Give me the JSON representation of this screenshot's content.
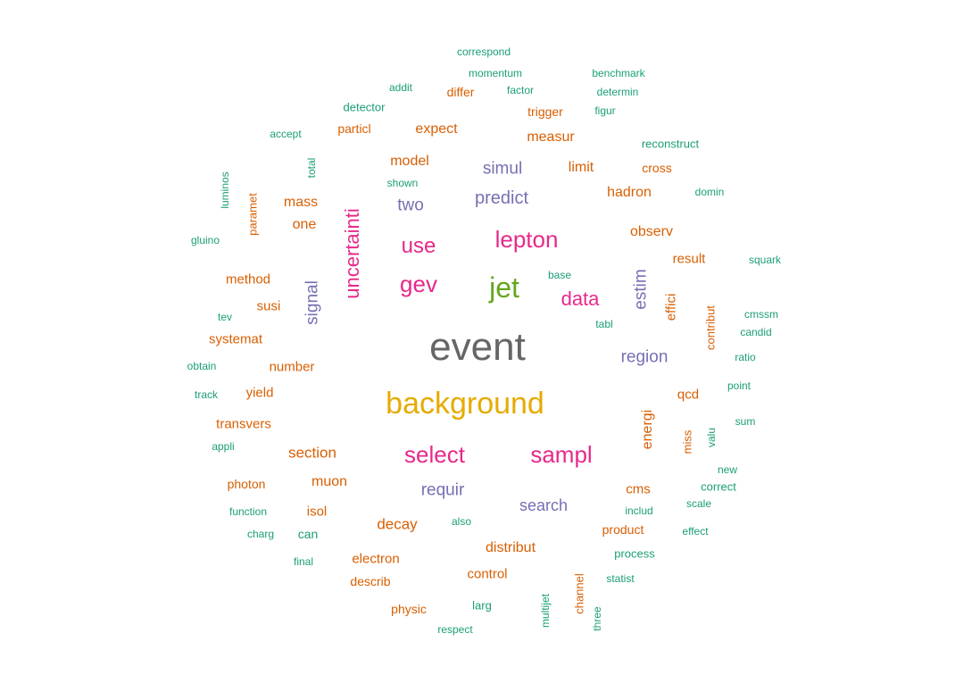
{
  "palette": {
    "teal": "#1b9e77",
    "orange": "#d95f02",
    "purple": "#7570b3",
    "pink": "#e7298a",
    "green": "#66a61e",
    "gold": "#e6ab02",
    "gray": "#666666"
  },
  "words": [
    {
      "text": "event",
      "color": "gray",
      "weight": 10,
      "rotated": false
    },
    {
      "text": "background",
      "color": "gold",
      "weight": 9,
      "rotated": false
    },
    {
      "text": "jet",
      "color": "green",
      "weight": 8,
      "rotated": false
    },
    {
      "text": "lepton",
      "color": "pink",
      "weight": 7,
      "rotated": false
    },
    {
      "text": "select",
      "color": "pink",
      "weight": 7,
      "rotated": false
    },
    {
      "text": "sampl",
      "color": "pink",
      "weight": 7,
      "rotated": false
    },
    {
      "text": "gev",
      "color": "pink",
      "weight": 7,
      "rotated": false
    },
    {
      "text": "use",
      "color": "pink",
      "weight": 6,
      "rotated": false
    },
    {
      "text": "data",
      "color": "pink",
      "weight": 6,
      "rotated": false
    },
    {
      "text": "uncertainti",
      "color": "pink",
      "weight": 6,
      "rotated": true
    },
    {
      "text": "predict",
      "color": "purple",
      "weight": 5,
      "rotated": false
    },
    {
      "text": "region",
      "color": "purple",
      "weight": 5,
      "rotated": false
    },
    {
      "text": "requir",
      "color": "purple",
      "weight": 5,
      "rotated": false
    },
    {
      "text": "simul",
      "color": "purple",
      "weight": 5,
      "rotated": false
    },
    {
      "text": "two",
      "color": "purple",
      "weight": 5,
      "rotated": false
    },
    {
      "text": "search",
      "color": "purple",
      "weight": 5,
      "rotated": false
    },
    {
      "text": "signal",
      "color": "purple",
      "weight": 5,
      "rotated": true
    },
    {
      "text": "estim",
      "color": "purple",
      "weight": 5,
      "rotated": true
    },
    {
      "text": "expect",
      "color": "orange",
      "weight": 4,
      "rotated": false
    },
    {
      "text": "measur",
      "color": "orange",
      "weight": 4,
      "rotated": false
    },
    {
      "text": "model",
      "color": "orange",
      "weight": 4,
      "rotated": false
    },
    {
      "text": "limit",
      "color": "orange",
      "weight": 4,
      "rotated": false
    },
    {
      "text": "hadron",
      "color": "orange",
      "weight": 4,
      "rotated": false
    },
    {
      "text": "mass",
      "color": "orange",
      "weight": 4,
      "rotated": false
    },
    {
      "text": "one",
      "color": "orange",
      "weight": 4,
      "rotated": false
    },
    {
      "text": "observ",
      "color": "orange",
      "weight": 4,
      "rotated": false
    },
    {
      "text": "result",
      "color": "orange",
      "weight": 4,
      "rotated": false
    },
    {
      "text": "method",
      "color": "orange",
      "weight": 4,
      "rotated": false
    },
    {
      "text": "susi",
      "color": "orange",
      "weight": 4,
      "rotated": false
    },
    {
      "text": "systemat",
      "color": "orange",
      "weight": 4,
      "rotated": false
    },
    {
      "text": "number",
      "color": "orange",
      "weight": 4,
      "rotated": false
    },
    {
      "text": "yield",
      "color": "orange",
      "weight": 4,
      "rotated": false
    },
    {
      "text": "qcd",
      "color": "orange",
      "weight": 4,
      "rotated": false
    },
    {
      "text": "transvers",
      "color": "orange",
      "weight": 4,
      "rotated": false
    },
    {
      "text": "section",
      "color": "orange",
      "weight": 4,
      "rotated": false
    },
    {
      "text": "muon",
      "color": "orange",
      "weight": 4,
      "rotated": false
    },
    {
      "text": "cms",
      "color": "orange",
      "weight": 4,
      "rotated": false
    },
    {
      "text": "isol",
      "color": "orange",
      "weight": 4,
      "rotated": false
    },
    {
      "text": "decay",
      "color": "orange",
      "weight": 4,
      "rotated": false
    },
    {
      "text": "distribut",
      "color": "orange",
      "weight": 4,
      "rotated": false
    },
    {
      "text": "electron",
      "color": "orange",
      "weight": 4,
      "rotated": false
    },
    {
      "text": "control",
      "color": "orange",
      "weight": 4,
      "rotated": false
    },
    {
      "text": "energi",
      "color": "orange",
      "weight": 4,
      "rotated": true
    },
    {
      "text": "effici",
      "color": "orange",
      "weight": 4,
      "rotated": true
    },
    {
      "text": "differ",
      "color": "orange",
      "weight": 3,
      "rotated": false
    },
    {
      "text": "trigger",
      "color": "orange",
      "weight": 3,
      "rotated": false
    },
    {
      "text": "particl",
      "color": "orange",
      "weight": 3,
      "rotated": false
    },
    {
      "text": "cross",
      "color": "orange",
      "weight": 3,
      "rotated": false
    },
    {
      "text": "photon",
      "color": "orange",
      "weight": 3,
      "rotated": false
    },
    {
      "text": "product",
      "color": "orange",
      "weight": 3,
      "rotated": false
    },
    {
      "text": "describ",
      "color": "orange",
      "weight": 3,
      "rotated": false
    },
    {
      "text": "physic",
      "color": "orange",
      "weight": 3,
      "rotated": false
    },
    {
      "text": "paramet",
      "color": "orange",
      "weight": 3,
      "rotated": true
    },
    {
      "text": "contribut",
      "color": "orange",
      "weight": 3,
      "rotated": true
    },
    {
      "text": "miss",
      "color": "orange",
      "weight": 3,
      "rotated": true
    },
    {
      "text": "channel",
      "color": "orange",
      "weight": 3,
      "rotated": true
    },
    {
      "text": "correspond",
      "color": "teal",
      "weight": 2,
      "rotated": false
    },
    {
      "text": "momentum",
      "color": "teal",
      "weight": 2,
      "rotated": false
    },
    {
      "text": "benchmark",
      "color": "teal",
      "weight": 2,
      "rotated": false
    },
    {
      "text": "addit",
      "color": "teal",
      "weight": 2,
      "rotated": false
    },
    {
      "text": "factor",
      "color": "teal",
      "weight": 2,
      "rotated": false
    },
    {
      "text": "determin",
      "color": "teal",
      "weight": 2,
      "rotated": false
    },
    {
      "text": "detector",
      "color": "teal",
      "weight": 2,
      "rotated": false
    },
    {
      "text": "figur",
      "color": "teal",
      "weight": 2,
      "rotated": false
    },
    {
      "text": "accept",
      "color": "teal",
      "weight": 2,
      "rotated": false
    },
    {
      "text": "reconstruct",
      "color": "teal",
      "weight": 2,
      "rotated": false
    },
    {
      "text": "shown",
      "color": "teal",
      "weight": 2,
      "rotated": false
    },
    {
      "text": "domin",
      "color": "teal",
      "weight": 2,
      "rotated": false
    },
    {
      "text": "gluino",
      "color": "teal",
      "weight": 2,
      "rotated": false
    },
    {
      "text": "base",
      "color": "teal",
      "weight": 2,
      "rotated": false
    },
    {
      "text": "squark",
      "color": "teal",
      "weight": 2,
      "rotated": false
    },
    {
      "text": "tev",
      "color": "teal",
      "weight": 2,
      "rotated": false
    },
    {
      "text": "cmssm",
      "color": "teal",
      "weight": 2,
      "rotated": false
    },
    {
      "text": "tabl",
      "color": "teal",
      "weight": 2,
      "rotated": false
    },
    {
      "text": "candid",
      "color": "teal",
      "weight": 2,
      "rotated": false
    },
    {
      "text": "obtain",
      "color": "teal",
      "weight": 2,
      "rotated": false
    },
    {
      "text": "ratio",
      "color": "teal",
      "weight": 2,
      "rotated": false
    },
    {
      "text": "track",
      "color": "teal",
      "weight": 2,
      "rotated": false
    },
    {
      "text": "point",
      "color": "teal",
      "weight": 2,
      "rotated": false
    },
    {
      "text": "sum",
      "color": "teal",
      "weight": 2,
      "rotated": false
    },
    {
      "text": "appli",
      "color": "teal",
      "weight": 2,
      "rotated": false
    },
    {
      "text": "new",
      "color": "teal",
      "weight": 2,
      "rotated": false
    },
    {
      "text": "correct",
      "color": "teal",
      "weight": 2,
      "rotated": false
    },
    {
      "text": "function",
      "color": "teal",
      "weight": 2,
      "rotated": false
    },
    {
      "text": "includ",
      "color": "teal",
      "weight": 2,
      "rotated": false
    },
    {
      "text": "scale",
      "color": "teal",
      "weight": 2,
      "rotated": false
    },
    {
      "text": "charg",
      "color": "teal",
      "weight": 2,
      "rotated": false
    },
    {
      "text": "can",
      "color": "teal",
      "weight": 2,
      "rotated": false
    },
    {
      "text": "also",
      "color": "teal",
      "weight": 2,
      "rotated": false
    },
    {
      "text": "effect",
      "color": "teal",
      "weight": 2,
      "rotated": false
    },
    {
      "text": "process",
      "color": "teal",
      "weight": 2,
      "rotated": false
    },
    {
      "text": "final",
      "color": "teal",
      "weight": 2,
      "rotated": false
    },
    {
      "text": "statist",
      "color": "teal",
      "weight": 2,
      "rotated": false
    },
    {
      "text": "larg",
      "color": "teal",
      "weight": 2,
      "rotated": false
    },
    {
      "text": "respect",
      "color": "teal",
      "weight": 2,
      "rotated": false
    },
    {
      "text": "total",
      "color": "teal",
      "weight": 2,
      "rotated": true
    },
    {
      "text": "luminos",
      "color": "teal",
      "weight": 2,
      "rotated": true
    },
    {
      "text": "valu",
      "color": "teal",
      "weight": 2,
      "rotated": true
    },
    {
      "text": "multijet",
      "color": "teal",
      "weight": 2,
      "rotated": true
    },
    {
      "text": "three",
      "color": "teal",
      "weight": 2,
      "rotated": true
    }
  ]
}
